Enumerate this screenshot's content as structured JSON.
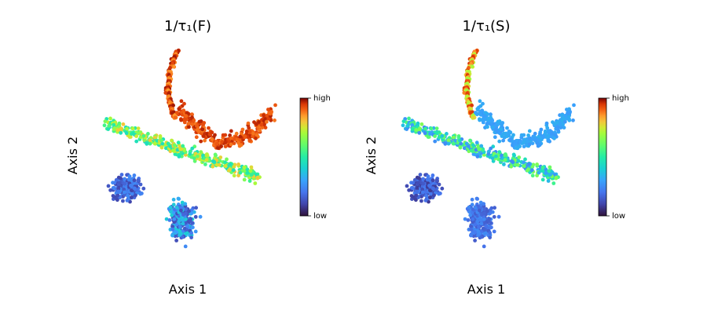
{
  "chart_data": [
    {
      "type": "scatter",
      "title": "1/τ₁(F)",
      "xlabel": "Axis 1",
      "ylabel": "Axis 2",
      "axes_visible": false,
      "grid": false,
      "colormap": "turbo",
      "colorbar": {
        "min_label": "low",
        "max_label": "high",
        "placement": "right"
      },
      "clusters": [
        {
          "name": "top-arm",
          "value_range": [
            0.85,
            0.98
          ]
        },
        {
          "name": "right-block",
          "value_range": [
            0.88,
            0.97
          ]
        },
        {
          "name": "middle-band",
          "value_range": [
            0.45,
            0.8
          ]
        },
        {
          "name": "lower-left-blob",
          "value_range": [
            0.1,
            0.25
          ]
        },
        {
          "name": "lower-center-blob",
          "value_range": [
            0.12,
            0.4
          ]
        }
      ]
    },
    {
      "type": "scatter",
      "title": "1/τ₁(S)",
      "xlabel": "Axis 1",
      "ylabel": "Axis 2",
      "axes_visible": false,
      "grid": false,
      "colormap": "turbo",
      "colorbar": {
        "min_label": "low",
        "max_label": "high",
        "placement": "right"
      },
      "clusters": [
        {
          "name": "top-arm",
          "value_range": [
            0.7,
            0.95
          ]
        },
        {
          "name": "right-block",
          "value_range": [
            0.28,
            0.33
          ]
        },
        {
          "name": "middle-band",
          "value_range": [
            0.25,
            0.65
          ]
        },
        {
          "name": "lower-left-blob",
          "value_range": [
            0.08,
            0.22
          ]
        },
        {
          "name": "lower-center-blob",
          "value_range": [
            0.15,
            0.25
          ]
        }
      ]
    }
  ]
}
